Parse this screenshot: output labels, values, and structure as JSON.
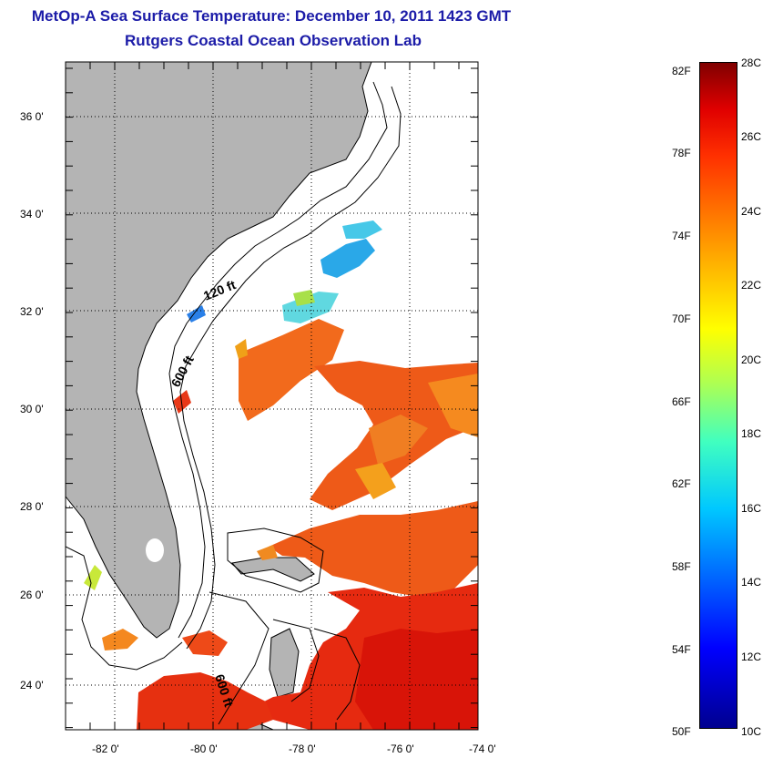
{
  "title": "MetOp-A Sea Surface Temperature:  December 10, 2011 1423 GMT",
  "subtitle": "Rutgers Coastal Ocean Observation Lab",
  "map": {
    "lat_range": [
      23,
      37.2
    ],
    "lon_range": [
      -83,
      -73
    ],
    "lat_ticks": [
      {
        "value": 24,
        "label": "24 0'"
      },
      {
        "value": 26,
        "label": "26 0'"
      },
      {
        "value": 28,
        "label": "28 0'"
      },
      {
        "value": 30,
        "label": "30 0'"
      },
      {
        "value": 32,
        "label": "32 0'"
      },
      {
        "value": 34,
        "label": "34 0'"
      },
      {
        "value": 36,
        "label": "36 0'"
      }
    ],
    "lon_ticks": [
      {
        "value": -82,
        "label": "-82 0'"
      },
      {
        "value": -80,
        "label": "-80 0'"
      },
      {
        "value": -78,
        "label": "-78 0'"
      },
      {
        "value": -76,
        "label": "-76 0'"
      },
      {
        "value": -74,
        "label": "-74 0'"
      }
    ],
    "contour_labels": [
      "120 ft",
      "600 ft",
      "600 ft"
    ],
    "colors": {
      "land": "#b4b4b4",
      "ocean_nodata": "#ffffff"
    }
  },
  "colorbar": {
    "range_c": [
      10,
      28
    ],
    "range_f": [
      50,
      82
    ],
    "labels_f": [
      "82F",
      "78F",
      "74F",
      "70F",
      "66F",
      "62F",
      "58F",
      "54F",
      "50F"
    ],
    "labels_c": [
      "28C",
      "26C",
      "24C",
      "22C",
      "20C",
      "18C",
      "16C",
      "14C",
      "12C",
      "10C"
    ],
    "colors": [
      "#00008f",
      "#0000ff",
      "#00c8ff",
      "#ffff00",
      "#ff8000",
      "#e00000",
      "#800000"
    ]
  }
}
